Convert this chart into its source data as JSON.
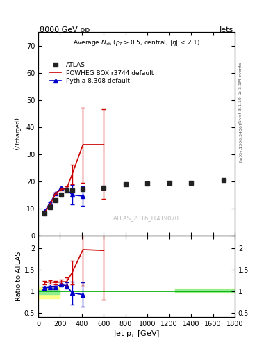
{
  "title_top_left": "8000 GeV pp",
  "title_top_right": "Jets",
  "plot_title": "Average $N_{ch}$ ($p_T$$>$0.5, central, $|\\eta|$ < 2.1)",
  "watermark": "ATLAS_2016_I1419070",
  "right_label1": "Rivet 3.1.10, ≥ 3.1M events",
  "right_label2": "[arXiv:1306.3436]",
  "xlabel": "Jet p$_T$ [GeV]",
  "ylabel_main": "⟨ $n_{charged}$ ⟩",
  "ylabel_ratio": "Ratio to ATLAS",
  "xlim": [
    0,
    1800
  ],
  "ylim_main": [
    0,
    75
  ],
  "ylim_ratio": [
    0.4,
    2.3
  ],
  "atlas_x": [
    60,
    110,
    160,
    210,
    260,
    310,
    410,
    600,
    800,
    1000,
    1200,
    1400,
    1700
  ],
  "atlas_y": [
    8.0,
    10.5,
    13.0,
    15.0,
    16.5,
    16.5,
    17.0,
    17.5,
    18.8,
    19.2,
    19.3,
    19.5,
    20.5
  ],
  "powheg_x": [
    60,
    110,
    160,
    210,
    260,
    310,
    410,
    600
  ],
  "powheg_y": [
    8.5,
    11.5,
    15.5,
    17.0,
    17.2,
    22.5,
    33.5,
    33.5
  ],
  "powheg_yerr_lo": [
    0.3,
    0.3,
    0.3,
    0.5,
    1.0,
    3.5,
    14.0,
    20.0
  ],
  "powheg_yerr_hi": [
    0.3,
    0.3,
    0.3,
    0.5,
    1.0,
    3.5,
    13.5,
    13.0
  ],
  "pythia_x": [
    60,
    110,
    160,
    210,
    260,
    310,
    410
  ],
  "pythia_y": [
    9.0,
    12.0,
    15.5,
    17.5,
    17.0,
    15.0,
    14.5
  ],
  "pythia_yerr_lo": [
    0.2,
    0.2,
    0.2,
    0.2,
    0.5,
    3.5,
    3.5
  ],
  "pythia_yerr_hi": [
    0.2,
    0.2,
    0.2,
    0.2,
    0.5,
    3.5,
    3.5
  ],
  "powheg_ratio_x": [
    60,
    110,
    160,
    210,
    260,
    310,
    410,
    600
  ],
  "powheg_ratio_y": [
    1.2,
    1.22,
    1.2,
    1.22,
    1.22,
    1.43,
    1.97,
    1.95
  ],
  "powheg_ratio_yerr_lo": [
    0.04,
    0.04,
    0.04,
    0.05,
    0.1,
    0.28,
    0.85,
    1.15
  ],
  "powheg_ratio_yerr_hi": [
    0.04,
    0.04,
    0.04,
    0.05,
    0.1,
    0.28,
    0.85,
    0.75
  ],
  "pythia_ratio_x": [
    60,
    110,
    160,
    210,
    260,
    310,
    410
  ],
  "pythia_ratio_y": [
    1.07,
    1.1,
    1.1,
    1.15,
    1.13,
    0.96,
    0.92
  ],
  "pythia_ratio_yerr_lo": [
    0.03,
    0.03,
    0.03,
    0.03,
    0.07,
    0.27,
    0.28
  ],
  "pythia_ratio_yerr_hi": [
    0.03,
    0.03,
    0.03,
    0.03,
    0.07,
    0.27,
    0.28
  ],
  "color_atlas": "#222222",
  "color_powheg": "#cc0000",
  "color_pythia": "#0000cc",
  "color_green_band": "#90ee90",
  "color_yellow_band": "#ffff88",
  "color_ratio_line": "#00aa00",
  "legend_labels": [
    "ATLAS",
    "POWHEG BOX r3744 default",
    "Pythia 8.308 default"
  ]
}
